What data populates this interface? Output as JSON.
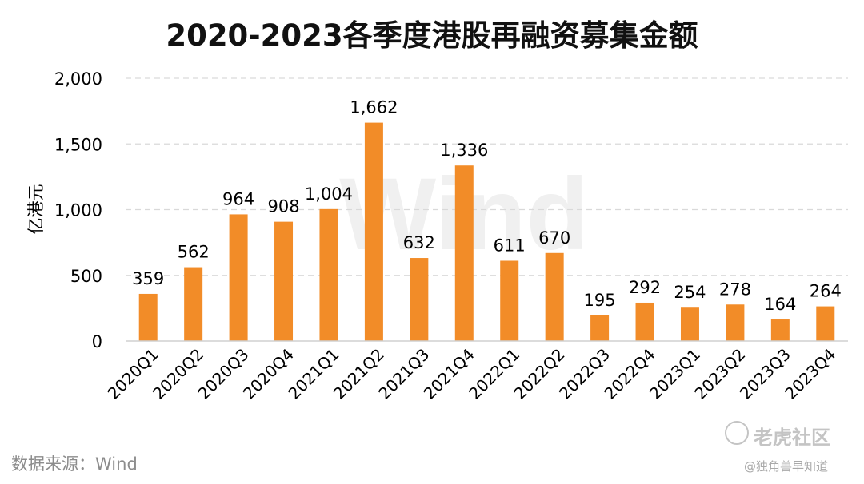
{
  "chart_data": {
    "type": "bar",
    "title": "2020-2023各季度港股再融资募集金额",
    "ylabel": "亿港元",
    "xlabel": "",
    "categories": [
      "2020Q1",
      "2020Q2",
      "2020Q3",
      "2020Q4",
      "2021Q1",
      "2021Q2",
      "2021Q3",
      "2021Q4",
      "2022Q1",
      "2022Q2",
      "2022Q3",
      "2022Q4",
      "2023Q1",
      "2023Q2",
      "2023Q3",
      "2023Q4"
    ],
    "values": [
      359,
      562,
      964,
      908,
      1004,
      1662,
      632,
      1336,
      611,
      670,
      195,
      292,
      254,
      278,
      164,
      264
    ],
    "data_labels": [
      "359",
      "562",
      "964",
      "908",
      "1,004",
      "1,662",
      "632",
      "1,336",
      "611",
      "670",
      "195",
      "292",
      "254",
      "278",
      "164",
      "264"
    ],
    "ylim": [
      0,
      2000
    ],
    "yticks": [
      0,
      500,
      1000,
      1500,
      2000
    ],
    "ytick_labels": [
      "0",
      "500",
      "1,000",
      "1,500",
      "2,000"
    ],
    "grid": true,
    "legend": "none",
    "bar_color": "#F28C28"
  },
  "footer": {
    "source": "数据来源：Wind",
    "watermark_center": "Wind",
    "watermark_site": "老虎社区",
    "watermark_handle": "@独角兽早知道"
  }
}
